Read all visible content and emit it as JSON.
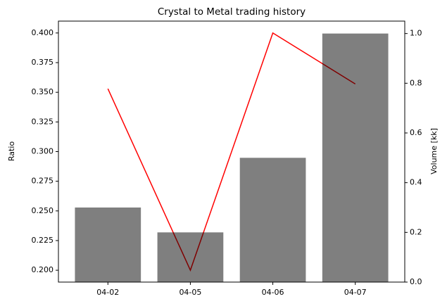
{
  "chart_data": {
    "type": "bar-line",
    "title": "Crystal to Metal trading history",
    "ylabel": "Ratio",
    "y2label": "Volume [kk]",
    "categories": [
      "04-02",
      "04-05",
      "04-06",
      "04-07"
    ],
    "series": [
      {
        "type": "line",
        "color": "#ff0000",
        "values": [
          0.353,
          0.2,
          0.4,
          0.357
        ]
      },
      {
        "type": "bar",
        "axis": "y2",
        "color": "#000000",
        "alpha": 0.5,
        "values": [
          0.3,
          0.2,
          0.5,
          1.0
        ]
      }
    ],
    "ylim": [
      0.19,
      0.41
    ],
    "yticks": [
      {
        "value": 0.2,
        "label": "0.200"
      },
      {
        "value": 0.225,
        "label": "0.225"
      },
      {
        "value": 0.25,
        "label": "0.250"
      },
      {
        "value": 0.275,
        "label": "0.275"
      },
      {
        "value": 0.3,
        "label": "0.300"
      },
      {
        "value": 0.325,
        "label": "0.325"
      },
      {
        "value": 0.35,
        "label": "0.350"
      },
      {
        "value": 0.375,
        "label": "0.375"
      },
      {
        "value": 0.4,
        "label": "0.400"
      }
    ],
    "y2lim": [
      0,
      1.05
    ],
    "y2ticks": [
      {
        "value": 0,
        "label": "0.0"
      },
      0.2,
      0.4,
      0.6,
      0.8,
      {
        "value": 1,
        "label": "1.0"
      }
    ]
  }
}
